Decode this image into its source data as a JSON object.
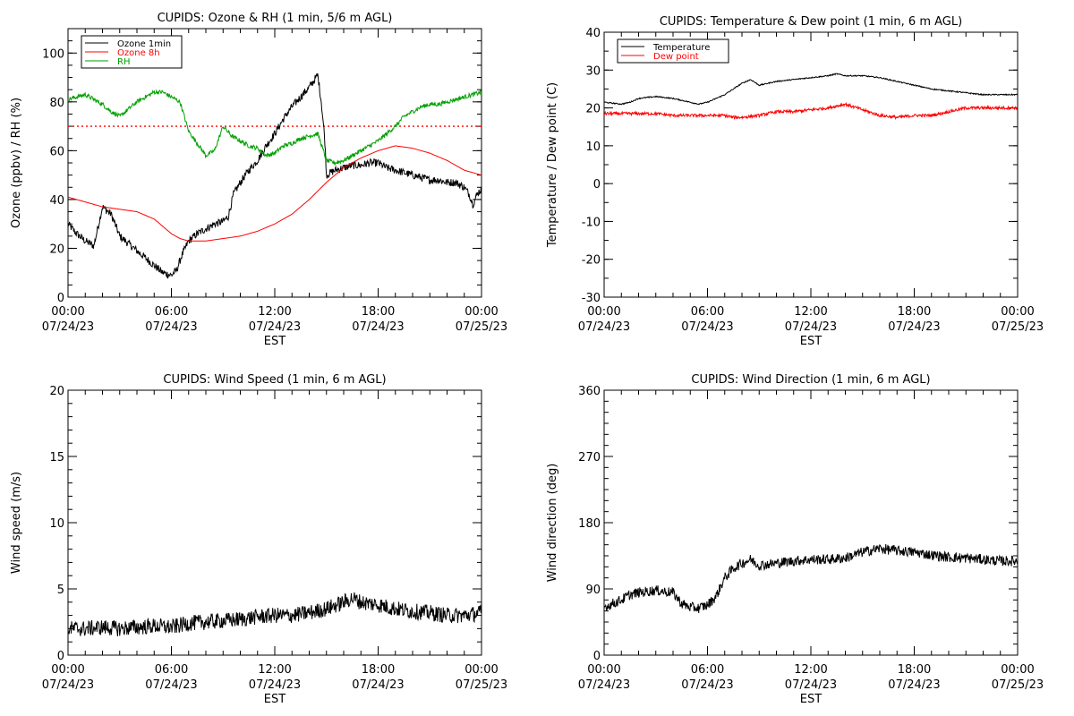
{
  "colors": {
    "black": "#000000",
    "red": "#ff0000",
    "green": "#00a000"
  },
  "chart_data": [
    {
      "type": "line",
      "title": "CUPIDS: Ozone & RH (1 min, 5/6 m AGL)",
      "xlabel": "EST",
      "ylabel": "Ozone (ppbv) / RH (%)",
      "xlim": [
        0,
        24
      ],
      "ylim": [
        0,
        110
      ],
      "y_major_ticks": [
        0,
        20,
        40,
        60,
        80,
        100
      ],
      "y_minor_step": 5,
      "x_tick_times": [
        "00:00",
        "06:00",
        "12:00",
        "18:00",
        "00:00"
      ],
      "x_tick_dates": [
        "07/24/23",
        "07/24/23",
        "07/24/23",
        "07/24/23",
        "07/25/23"
      ],
      "x_ticks": [
        0,
        6,
        12,
        18,
        24
      ],
      "legend": {
        "position": "top-left",
        "entries": [
          "Ozone 1min",
          "Ozone 8h",
          "RH"
        ]
      },
      "reference_line": {
        "y": 70,
        "color": "#ff0000",
        "style": "dotted"
      },
      "series": [
        {
          "name": "Ozone 1min",
          "color": "#000000",
          "noise": 1.6,
          "x": [
            0,
            0.5,
            1,
            1.5,
            2,
            2.5,
            3,
            3.5,
            4,
            4.5,
            5,
            5.5,
            6,
            6.3,
            6.6,
            7,
            7.5,
            8,
            8.5,
            9,
            9.3,
            9.6,
            10,
            10.5,
            11,
            11.5,
            12,
            12.5,
            13,
            13.5,
            14,
            14.3,
            14.5,
            14.7,
            14.9,
            15,
            15.5,
            16,
            16.5,
            17,
            17.5,
            18,
            18.5,
            19,
            19.5,
            20,
            20.5,
            21,
            21.5,
            22,
            22.5,
            23,
            23.3,
            23.5,
            23.8,
            24
          ],
          "y": [
            30,
            26,
            23,
            21,
            37,
            34,
            25,
            22,
            19,
            16,
            13,
            10,
            9,
            11,
            17,
            23,
            26,
            28,
            30,
            31,
            33,
            42,
            47,
            52,
            56,
            62,
            67,
            73,
            78,
            82,
            86,
            89,
            91,
            80,
            65,
            50,
            52,
            53,
            54,
            54,
            55,
            55,
            53,
            52,
            51,
            50,
            49,
            48,
            48,
            47,
            47,
            45,
            42,
            38,
            43,
            44
          ]
        },
        {
          "name": "Ozone 8h",
          "color": "#ff0000",
          "noise": 0,
          "x": [
            0,
            1,
            2,
            3,
            4,
            5,
            5.5,
            6,
            6.5,
            7,
            8,
            9,
            10,
            11,
            12,
            13,
            14,
            15,
            16,
            17,
            18,
            19,
            20,
            21,
            22,
            23,
            24
          ],
          "y": [
            41,
            39,
            37,
            36,
            35,
            32,
            29,
            26,
            24,
            23,
            23,
            24,
            25,
            27,
            30,
            34,
            40,
            47,
            53,
            57,
            60,
            62,
            61,
            59,
            56,
            52,
            50
          ]
        },
        {
          "name": "RH",
          "color": "#00a000",
          "noise": 0.9,
          "x": [
            0,
            0.5,
            1,
            1.5,
            2,
            2.5,
            3,
            3.5,
            4,
            4.5,
            5,
            5.5,
            6,
            6.5,
            7,
            7.5,
            8,
            8.5,
            9,
            9.5,
            10,
            10.5,
            11,
            11.5,
            12,
            12.5,
            13,
            13.5,
            14,
            14.5,
            15,
            15.5,
            16,
            16.5,
            17,
            17.5,
            18,
            18.5,
            19,
            19.5,
            20,
            20.5,
            21,
            21.5,
            22,
            22.5,
            23,
            23.5,
            24
          ],
          "y": [
            81,
            82,
            83,
            81,
            79,
            76,
            74,
            77,
            80,
            82,
            84,
            84,
            82,
            80,
            68,
            63,
            58,
            60,
            70,
            66,
            64,
            62,
            61,
            58,
            59,
            62,
            63,
            65,
            66,
            67,
            56,
            55,
            56,
            58,
            60,
            62,
            64,
            67,
            70,
            74,
            76,
            78,
            79,
            79,
            80,
            81,
            82,
            83,
            84
          ]
        }
      ]
    },
    {
      "type": "line",
      "title": "CUPIDS: Temperature & Dew point (1 min, 6 m AGL)",
      "xlabel": "EST",
      "ylabel": "Temperature / Dew point (C)",
      "xlim": [
        0,
        24
      ],
      "ylim": [
        -30,
        40
      ],
      "y_major_ticks": [
        -30,
        -20,
        -10,
        0,
        10,
        20,
        30,
        40
      ],
      "y_minor_step": 5,
      "x_tick_times": [
        "00:00",
        "06:00",
        "12:00",
        "18:00",
        "00:00"
      ],
      "x_tick_dates": [
        "07/24/23",
        "07/24/23",
        "07/24/23",
        "07/24/23",
        "07/25/23"
      ],
      "x_ticks": [
        0,
        6,
        12,
        18,
        24
      ],
      "legend": {
        "position": "top-left",
        "entries": [
          "Temperature",
          "Dew point"
        ]
      },
      "series": [
        {
          "name": "Temperature",
          "color": "#000000",
          "noise": 0.15,
          "x": [
            0,
            1,
            1.5,
            2,
            3,
            4,
            5,
            5.5,
            6,
            7,
            7.5,
            8,
            8.5,
            9,
            10,
            11,
            12,
            13,
            13.5,
            14,
            15,
            16,
            17,
            18,
            19,
            20,
            21,
            22,
            23,
            24
          ],
          "y": [
            21.5,
            21,
            21.5,
            22.5,
            23,
            22.5,
            21.5,
            21,
            21.5,
            23.5,
            25,
            26.5,
            27.5,
            26,
            27,
            27.5,
            28,
            28.5,
            29,
            28.5,
            28.5,
            28,
            27,
            26,
            25,
            24.5,
            24,
            23.5,
            23.5,
            23.5
          ]
        },
        {
          "name": "Dew point",
          "color": "#ff0000",
          "noise": 0.4,
          "x": [
            0,
            1,
            2,
            3,
            4,
            5,
            6,
            7,
            7.5,
            8,
            9,
            10,
            11,
            12,
            13,
            14,
            15,
            16,
            17,
            18,
            19,
            20,
            21,
            22,
            23,
            24
          ],
          "y": [
            18.5,
            18.5,
            18.5,
            18.5,
            18,
            18,
            18,
            18,
            17.5,
            17.5,
            18,
            19,
            19,
            19.5,
            20,
            21,
            19.5,
            18,
            17.5,
            18,
            18,
            19,
            20,
            20,
            20,
            20
          ]
        }
      ]
    },
    {
      "type": "line",
      "title": "CUPIDS: Wind Speed (1 min, 6 m AGL)",
      "xlabel": "EST",
      "ylabel": "Wind speed (m/s)",
      "xlim": [
        0,
        24
      ],
      "ylim": [
        0,
        20
      ],
      "y_major_ticks": [
        0,
        5,
        10,
        15,
        20
      ],
      "y_minor_step": 1,
      "x_tick_times": [
        "00:00",
        "06:00",
        "12:00",
        "18:00",
        "00:00"
      ],
      "x_tick_dates": [
        "07/24/23",
        "07/24/23",
        "07/24/23",
        "07/24/23",
        "07/25/23"
      ],
      "x_ticks": [
        0,
        6,
        12,
        18,
        24
      ],
      "series": [
        {
          "name": "",
          "color": "#000000",
          "noise": 0.6,
          "x": [
            0,
            1,
            2,
            3,
            4,
            5,
            6,
            7,
            8,
            9,
            10,
            11,
            12,
            13,
            14,
            15,
            16,
            16.5,
            17,
            18,
            19,
            20,
            21,
            22,
            23,
            24
          ],
          "y": [
            2.0,
            2.0,
            2.1,
            2.0,
            2.1,
            2.2,
            2.1,
            2.4,
            2.5,
            2.6,
            2.7,
            2.9,
            3.0,
            3.0,
            3.2,
            3.5,
            4.0,
            4.3,
            4.0,
            3.8,
            3.5,
            3.3,
            3.2,
            3.0,
            3.0,
            3.2
          ]
        }
      ]
    },
    {
      "type": "line",
      "title": "CUPIDS: Wind Direction (1 min, 6 m AGL)",
      "xlabel": "EST",
      "ylabel": "Wind direction (deg)",
      "xlim": [
        0,
        24
      ],
      "ylim": [
        0,
        360
      ],
      "y_major_ticks": [
        0,
        90,
        180,
        270,
        360
      ],
      "y_minor_step": 15,
      "x_tick_times": [
        "00:00",
        "06:00",
        "12:00",
        "18:00",
        "00:00"
      ],
      "x_tick_dates": [
        "07/24/23",
        "07/24/23",
        "07/24/23",
        "07/24/23",
        "07/25/23"
      ],
      "x_ticks": [
        0,
        6,
        12,
        18,
        24
      ],
      "series": [
        {
          "name": "",
          "color": "#000000",
          "noise": 7,
          "x": [
            0,
            1,
            1.5,
            2,
            3,
            4,
            4.5,
            5,
            5.5,
            6,
            6.5,
            7,
            7.5,
            8,
            8.5,
            9,
            10,
            11,
            12,
            13,
            14,
            15,
            16,
            17,
            18,
            19,
            20,
            21,
            22,
            23,
            24
          ],
          "y": [
            65,
            75,
            82,
            85,
            88,
            85,
            70,
            65,
            64,
            68,
            80,
            105,
            118,
            125,
            130,
            122,
            125,
            128,
            130,
            130,
            132,
            140,
            145,
            142,
            140,
            136,
            133,
            132,
            130,
            128,
            128
          ]
        }
      ]
    }
  ]
}
